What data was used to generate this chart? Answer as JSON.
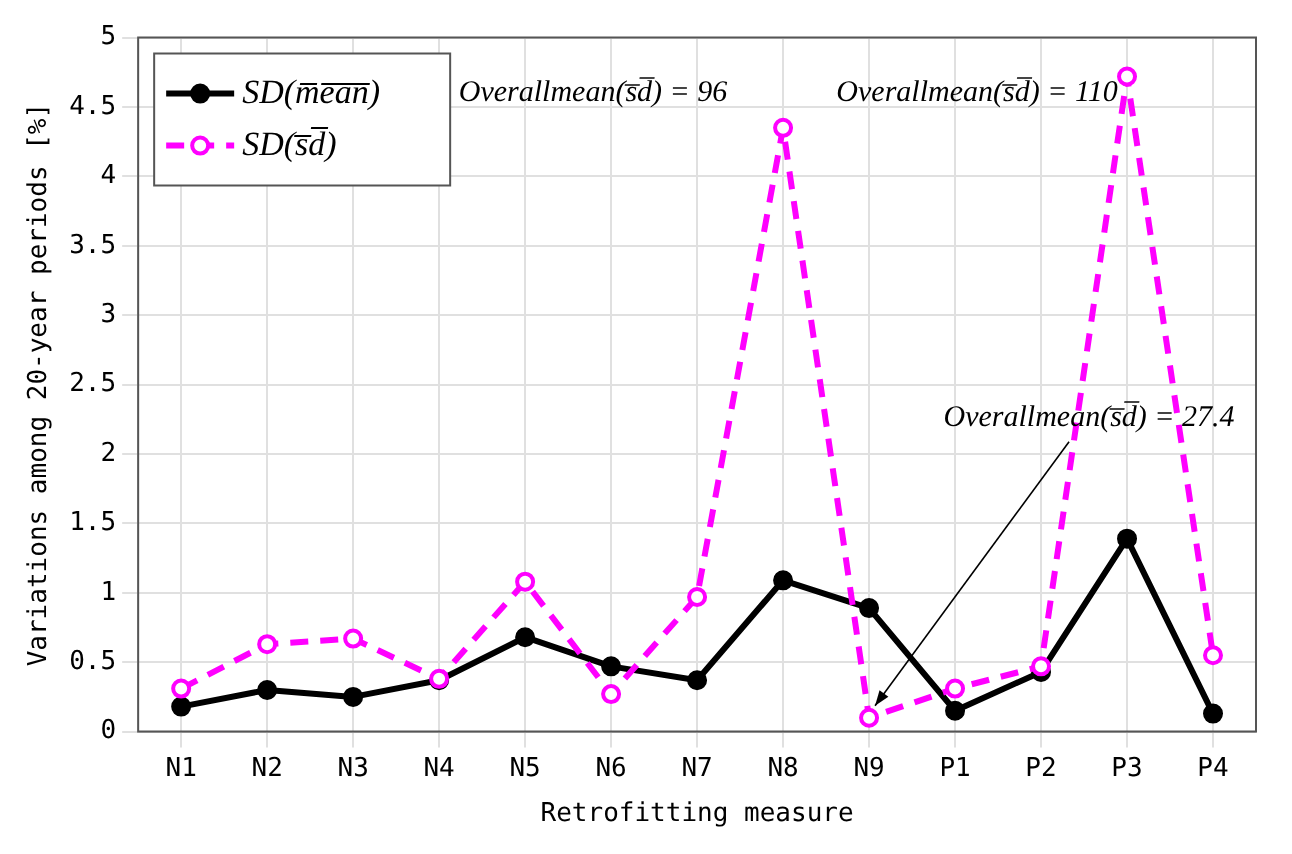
{
  "chart_data": {
    "type": "line",
    "xlabel": "Retrofitting measure",
    "ylabel": "Variations among 20-year periods [%]",
    "categories": [
      "N1",
      "N2",
      "N3",
      "N4",
      "N5",
      "N6",
      "N7",
      "N8",
      "N9",
      "P1",
      "P2",
      "P3",
      "P4"
    ],
    "series": [
      {
        "name": "SD(m̅e̅a̅n̅)",
        "color": "#000000",
        "line_style": "solid",
        "marker": "circle",
        "values": [
          0.18,
          0.3,
          0.25,
          0.37,
          0.68,
          0.47,
          0.37,
          1.09,
          0.89,
          0.15,
          0.43,
          1.39,
          0.13
        ]
      },
      {
        "name": "SD(s̅d̅)",
        "color": "#ff00ff",
        "line_style": "dashed",
        "marker": "circle",
        "values": [
          0.31,
          0.63,
          0.67,
          0.38,
          1.08,
          0.27,
          0.97,
          4.35,
          0.1,
          0.31,
          0.47,
          4.72,
          0.55
        ]
      }
    ],
    "annotations": [
      {
        "text": "Overallmean(s̅d̅) = 96",
        "x": "N8",
        "y": 4.35
      },
      {
        "text": "Overallmean(s̅d̅) = 110",
        "x": "P3",
        "y": 4.72
      },
      {
        "text": "Overallmean(s̅d̅) = 27.4",
        "x": "N9",
        "y": 0.1
      }
    ],
    "ylim": [
      0,
      5
    ],
    "yticks": [
      0,
      0.5,
      1,
      1.5,
      2,
      2.5,
      3,
      3.5,
      4,
      4.5,
      5
    ],
    "grid": true,
    "legend": "top left"
  }
}
